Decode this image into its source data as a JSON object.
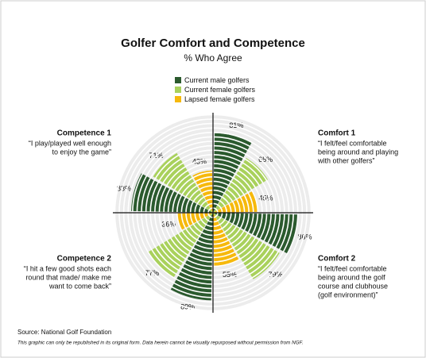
{
  "chart_data": {
    "type": "polar-bar",
    "title": "Golfer Comfort and Competence",
    "subtitle": "% Who Agree",
    "categories": [
      "Comfort 1",
      "Comfort 2",
      "Competence 2",
      "Competence 1"
    ],
    "category_descriptions": [
      [
        "“I felt/feel comfortable",
        "being around and playing",
        "with other golfers”"
      ],
      [
        "“I felt/feel comfortable",
        "being around the golf",
        "course and clubhouse",
        "(golf environment)”"
      ],
      [
        "“I hit a few good shots each",
        "round that made/ make me",
        "want to come back”"
      ],
      [
        "“I play/played well enough",
        "to enjoy the game”"
      ]
    ],
    "series": [
      {
        "name": "Current male golfers",
        "color": "#2b5a2e",
        "values": [
          81,
          86,
          89,
          83
        ],
        "value_labels": [
          "81%",
          "86%",
          "89%",
          "83%"
        ]
      },
      {
        "name": "Current female golfers",
        "color": "#a9d15c",
        "values": [
          65,
          79,
          77,
          71
        ],
        "value_labels": [
          "65%",
          "79%",
          "77%",
          "71%"
        ]
      },
      {
        "name": "Lapsed female golfers",
        "color": "#f6b90c",
        "values": [
          45,
          55,
          36,
          43
        ],
        "value_labels": [
          "45%",
          "55%",
          "36%",
          "43%"
        ]
      }
    ],
    "rlim": [
      0,
      100
    ],
    "source": "Source: National Golf Foundation",
    "note": "This graphic can only be republished in its original form. Data herein cannot be visually repurposed without permission from NGF."
  }
}
